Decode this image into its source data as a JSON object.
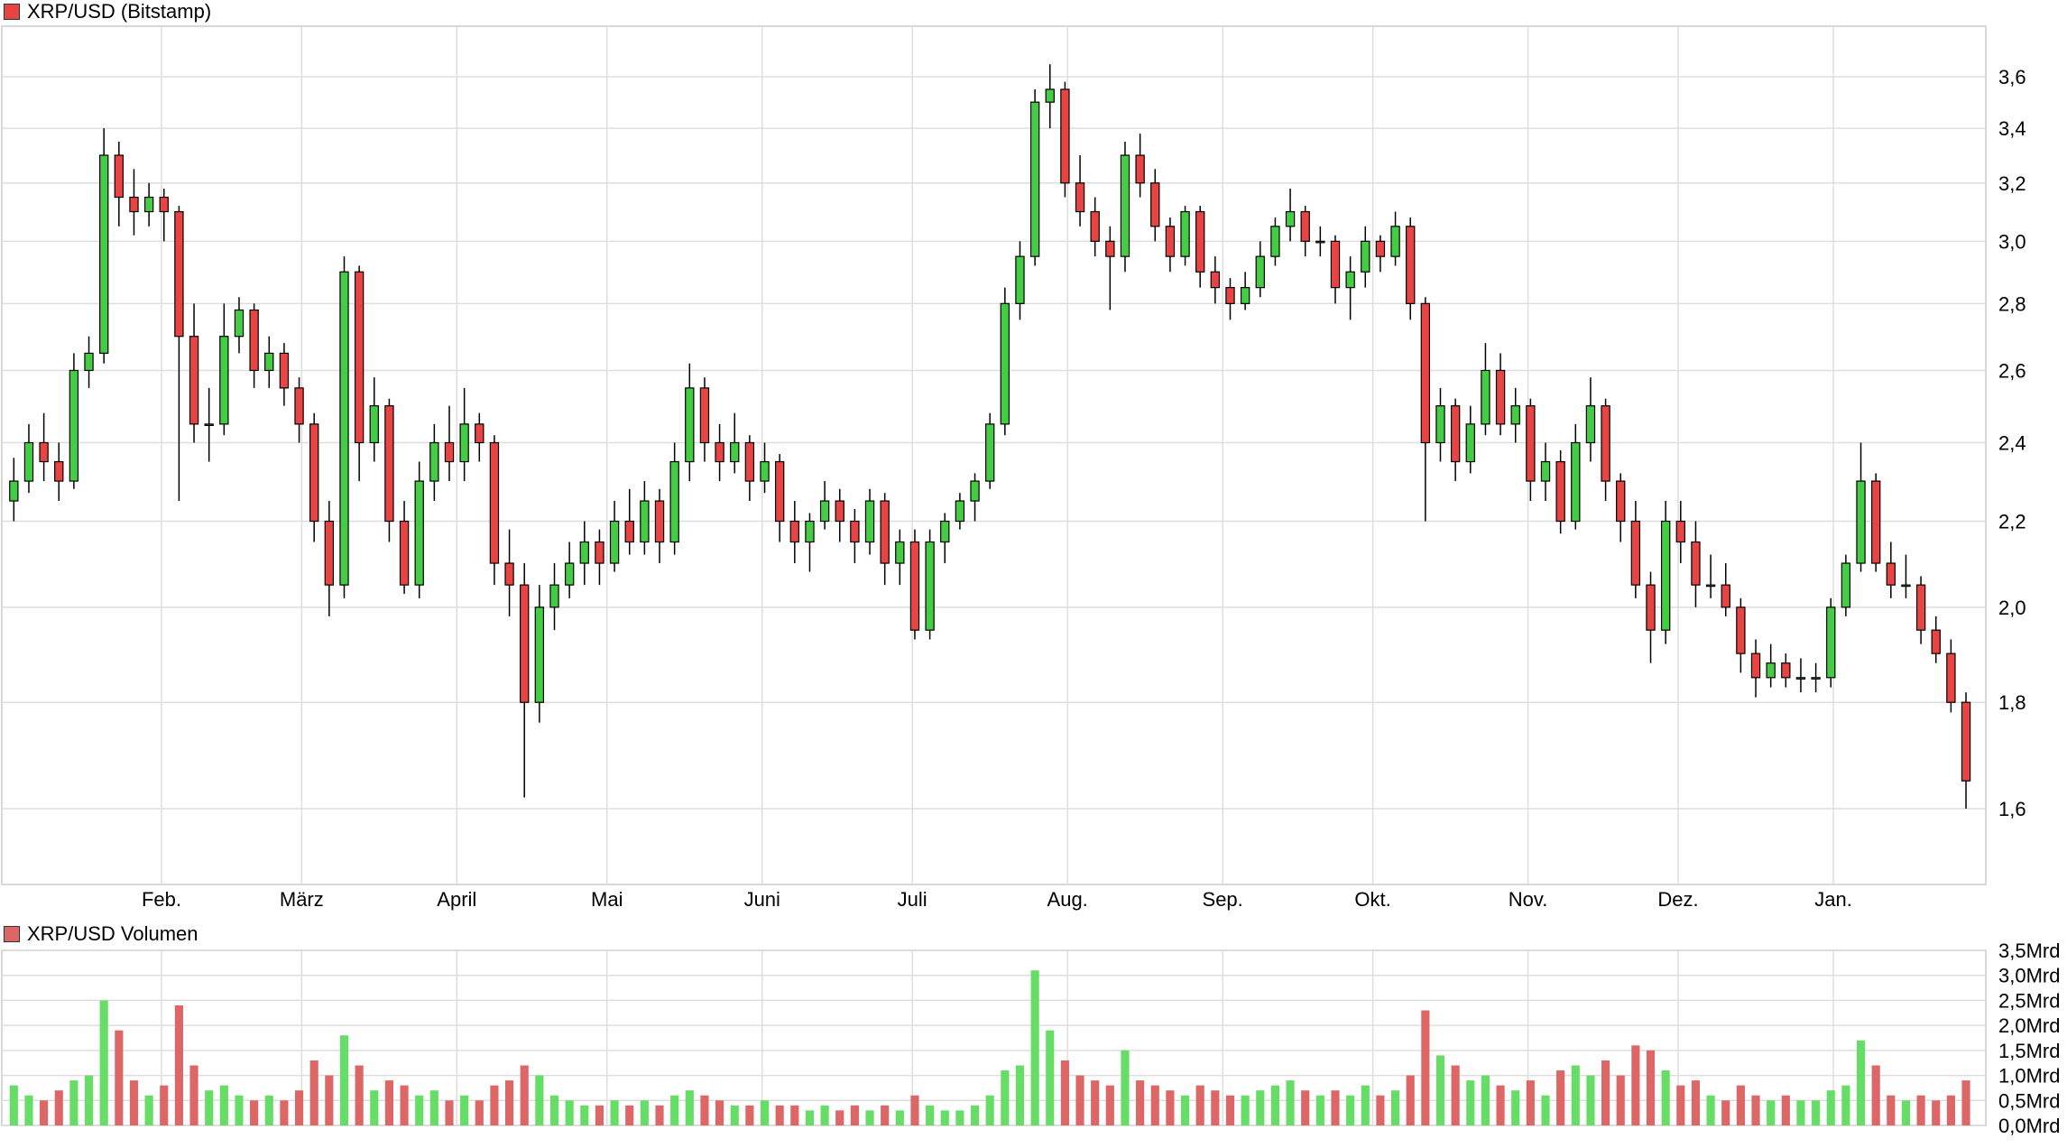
{
  "chart_data": [
    {
      "type": "candlestick",
      "title": "XRP/USD (Bitstamp)",
      "legend_color": "#e84444",
      "scale": "log",
      "ylim": [
        1.45,
        3.72
      ],
      "y_ticks": [
        "1,6",
        "1,8",
        "2,0",
        "2,2",
        "2,4",
        "2,6",
        "2,8",
        "3,0",
        "3,2",
        "3,4",
        "3,6"
      ],
      "y_tick_values": [
        1.6,
        1.8,
        2.0,
        2.2,
        2.4,
        2.6,
        2.8,
        3.0,
        3.2,
        3.4,
        3.6
      ],
      "x_ticks": [
        "Feb.",
        "März",
        "April",
        "Mai",
        "Juni",
        "Juli",
        "Aug.",
        "Sep.",
        "Okt.",
        "Nov.",
        "Dez.",
        "Jan."
      ],
      "x_tick_dates": [
        "2025-02-01",
        "2025-03-01",
        "2025-04-01",
        "2025-05-01",
        "2025-06-01",
        "2025-07-01",
        "2025-08-01",
        "2025-09-01",
        "2025-10-01",
        "2025-11-01",
        "2025-12-01",
        "2026-01-01"
      ],
      "start_date": "2025-01-01",
      "candle_step_days": 3,
      "grid": true,
      "up_color": "#44cc44",
      "down_color": "#e84444",
      "ohlc": [
        [
          2.25,
          2.36,
          2.2,
          2.3
        ],
        [
          2.3,
          2.45,
          2.27,
          2.4
        ],
        [
          2.4,
          2.48,
          2.3,
          2.35
        ],
        [
          2.35,
          2.4,
          2.25,
          2.3
        ],
        [
          2.3,
          2.65,
          2.28,
          2.6
        ],
        [
          2.6,
          2.7,
          2.55,
          2.65
        ],
        [
          2.65,
          3.4,
          2.62,
          3.3
        ],
        [
          3.3,
          3.35,
          3.05,
          3.15
        ],
        [
          3.15,
          3.25,
          3.02,
          3.1
        ],
        [
          3.1,
          3.2,
          3.05,
          3.15
        ],
        [
          3.15,
          3.18,
          3.0,
          3.1
        ],
        [
          3.1,
          3.12,
          2.25,
          2.7
        ],
        [
          2.7,
          2.8,
          2.4,
          2.45
        ],
        [
          2.45,
          2.55,
          2.35,
          2.45
        ],
        [
          2.45,
          2.8,
          2.42,
          2.7
        ],
        [
          2.7,
          2.82,
          2.65,
          2.78
        ],
        [
          2.78,
          2.8,
          2.55,
          2.6
        ],
        [
          2.6,
          2.7,
          2.55,
          2.65
        ],
        [
          2.65,
          2.68,
          2.5,
          2.55
        ],
        [
          2.55,
          2.58,
          2.4,
          2.45
        ],
        [
          2.45,
          2.48,
          2.15,
          2.2
        ],
        [
          2.2,
          2.25,
          1.98,
          2.05
        ],
        [
          2.05,
          2.95,
          2.02,
          2.9
        ],
        [
          2.9,
          2.92,
          2.3,
          2.4
        ],
        [
          2.4,
          2.58,
          2.35,
          2.5
        ],
        [
          2.5,
          2.52,
          2.15,
          2.2
        ],
        [
          2.2,
          2.25,
          2.03,
          2.05
        ],
        [
          2.05,
          2.35,
          2.02,
          2.3
        ],
        [
          2.3,
          2.45,
          2.25,
          2.4
        ],
        [
          2.4,
          2.5,
          2.3,
          2.35
        ],
        [
          2.35,
          2.55,
          2.3,
          2.45
        ],
        [
          2.45,
          2.48,
          2.35,
          2.4
        ],
        [
          2.4,
          2.42,
          2.05,
          2.1
        ],
        [
          2.1,
          2.18,
          1.98,
          2.05
        ],
        [
          2.05,
          2.1,
          1.62,
          1.8
        ],
        [
          1.8,
          2.05,
          1.76,
          2.0
        ],
        [
          2.0,
          2.1,
          1.95,
          2.05
        ],
        [
          2.05,
          2.15,
          2.02,
          2.1
        ],
        [
          2.1,
          2.2,
          2.05,
          2.15
        ],
        [
          2.15,
          2.18,
          2.05,
          2.1
        ],
        [
          2.1,
          2.25,
          2.08,
          2.2
        ],
        [
          2.2,
          2.28,
          2.12,
          2.15
        ],
        [
          2.15,
          2.3,
          2.12,
          2.25
        ],
        [
          2.25,
          2.28,
          2.1,
          2.15
        ],
        [
          2.15,
          2.4,
          2.12,
          2.35
        ],
        [
          2.35,
          2.62,
          2.3,
          2.55
        ],
        [
          2.55,
          2.58,
          2.35,
          2.4
        ],
        [
          2.4,
          2.45,
          2.3,
          2.35
        ],
        [
          2.35,
          2.48,
          2.32,
          2.4
        ],
        [
          2.4,
          2.42,
          2.25,
          2.3
        ],
        [
          2.3,
          2.4,
          2.27,
          2.35
        ],
        [
          2.35,
          2.37,
          2.15,
          2.2
        ],
        [
          2.2,
          2.25,
          2.1,
          2.15
        ],
        [
          2.15,
          2.22,
          2.08,
          2.2
        ],
        [
          2.2,
          2.3,
          2.18,
          2.25
        ],
        [
          2.25,
          2.28,
          2.15,
          2.2
        ],
        [
          2.2,
          2.23,
          2.1,
          2.15
        ],
        [
          2.15,
          2.28,
          2.12,
          2.25
        ],
        [
          2.25,
          2.27,
          2.05,
          2.1
        ],
        [
          2.1,
          2.18,
          2.05,
          2.15
        ],
        [
          2.15,
          2.18,
          1.93,
          1.95
        ],
        [
          1.95,
          2.18,
          1.93,
          2.15
        ],
        [
          2.15,
          2.22,
          2.1,
          2.2
        ],
        [
          2.2,
          2.27,
          2.18,
          2.25
        ],
        [
          2.25,
          2.32,
          2.2,
          2.3
        ],
        [
          2.3,
          2.48,
          2.28,
          2.45
        ],
        [
          2.45,
          2.85,
          2.42,
          2.8
        ],
        [
          2.8,
          3.0,
          2.75,
          2.95
        ],
        [
          2.95,
          3.55,
          2.92,
          3.5
        ],
        [
          3.5,
          3.65,
          3.4,
          3.55
        ],
        [
          3.55,
          3.58,
          3.15,
          3.2
        ],
        [
          3.2,
          3.3,
          3.05,
          3.1
        ],
        [
          3.1,
          3.15,
          2.95,
          3.0
        ],
        [
          3.0,
          3.05,
          2.78,
          2.95
        ],
        [
          2.95,
          3.35,
          2.9,
          3.3
        ],
        [
          3.3,
          3.38,
          3.15,
          3.2
        ],
        [
          3.2,
          3.25,
          3.0,
          3.05
        ],
        [
          3.05,
          3.08,
          2.9,
          2.95
        ],
        [
          2.95,
          3.12,
          2.92,
          3.1
        ],
        [
          3.1,
          3.12,
          2.85,
          2.9
        ],
        [
          2.9,
          2.95,
          2.8,
          2.85
        ],
        [
          2.85,
          2.88,
          2.75,
          2.8
        ],
        [
          2.8,
          2.9,
          2.78,
          2.85
        ],
        [
          2.85,
          3.0,
          2.82,
          2.95
        ],
        [
          2.95,
          3.08,
          2.92,
          3.05
        ],
        [
          3.05,
          3.18,
          3.0,
          3.1
        ],
        [
          3.1,
          3.12,
          2.95,
          3.0
        ],
        [
          3.0,
          3.05,
          2.95,
          3.0
        ],
        [
          3.0,
          3.02,
          2.8,
          2.85
        ],
        [
          2.85,
          2.95,
          2.75,
          2.9
        ],
        [
          2.9,
          3.05,
          2.85,
          3.0
        ],
        [
          3.0,
          3.02,
          2.9,
          2.95
        ],
        [
          2.95,
          3.1,
          2.92,
          3.05
        ],
        [
          3.05,
          3.08,
          2.75,
          2.8
        ],
        [
          2.8,
          2.82,
          2.2,
          2.4
        ],
        [
          2.4,
          2.55,
          2.35,
          2.5
        ],
        [
          2.5,
          2.52,
          2.3,
          2.35
        ],
        [
          2.35,
          2.5,
          2.32,
          2.45
        ],
        [
          2.45,
          2.68,
          2.42,
          2.6
        ],
        [
          2.6,
          2.65,
          2.42,
          2.45
        ],
        [
          2.45,
          2.55,
          2.4,
          2.5
        ],
        [
          2.5,
          2.52,
          2.25,
          2.3
        ],
        [
          2.3,
          2.4,
          2.25,
          2.35
        ],
        [
          2.35,
          2.38,
          2.17,
          2.2
        ],
        [
          2.2,
          2.45,
          2.18,
          2.4
        ],
        [
          2.4,
          2.58,
          2.35,
          2.5
        ],
        [
          2.5,
          2.52,
          2.25,
          2.3
        ],
        [
          2.3,
          2.32,
          2.15,
          2.2
        ],
        [
          2.2,
          2.25,
          2.02,
          2.05
        ],
        [
          2.05,
          2.08,
          1.88,
          1.95
        ],
        [
          1.95,
          2.25,
          1.92,
          2.2
        ],
        [
          2.2,
          2.25,
          2.1,
          2.15
        ],
        [
          2.15,
          2.2,
          2.0,
          2.05
        ],
        [
          2.05,
          2.12,
          2.02,
          2.05
        ],
        [
          2.05,
          2.1,
          1.98,
          2.0
        ],
        [
          2.0,
          2.02,
          1.86,
          1.9
        ],
        [
          1.9,
          1.93,
          1.81,
          1.85
        ],
        [
          1.85,
          1.92,
          1.83,
          1.88
        ],
        [
          1.88,
          1.9,
          1.83,
          1.85
        ],
        [
          1.85,
          1.89,
          1.82,
          1.85
        ],
        [
          1.85,
          1.88,
          1.82,
          1.85
        ],
        [
          1.85,
          2.02,
          1.83,
          2.0
        ],
        [
          2.0,
          2.12,
          1.98,
          2.1
        ],
        [
          2.1,
          2.4,
          2.08,
          2.3
        ],
        [
          2.3,
          2.32,
          2.08,
          2.1
        ],
        [
          2.1,
          2.15,
          2.02,
          2.05
        ],
        [
          2.05,
          2.12,
          2.02,
          2.05
        ],
        [
          2.05,
          2.07,
          1.92,
          1.95
        ],
        [
          1.95,
          1.98,
          1.88,
          1.9
        ],
        [
          1.9,
          1.93,
          1.78,
          1.8
        ],
        [
          1.8,
          1.82,
          1.6,
          1.65
        ]
      ]
    },
    {
      "type": "bar",
      "title": "XRP/USD Volumen",
      "legend_color": "#dd6666",
      "ylim": [
        0,
        3.5
      ],
      "y_ticks": [
        "0,0Mrd",
        "0,5Mrd",
        "1,0Mrd",
        "1,5Mrd",
        "2,0Mrd",
        "2,5Mrd",
        "3,0Mrd",
        "3,5Mrd"
      ],
      "y_tick_values": [
        0,
        0.5,
        1.0,
        1.5,
        2.0,
        2.5,
        3.0,
        3.5
      ],
      "unit": "Mrd",
      "up_color": "#66dd66",
      "down_color": "#dd6666",
      "values": [
        0.8,
        0.6,
        0.5,
        0.7,
        0.9,
        1.0,
        2.5,
        1.9,
        0.9,
        0.6,
        0.8,
        2.4,
        1.2,
        0.7,
        0.8,
        0.6,
        0.5,
        0.6,
        0.5,
        0.7,
        1.3,
        1.0,
        1.8,
        1.2,
        0.7,
        0.9,
        0.8,
        0.6,
        0.7,
        0.5,
        0.6,
        0.5,
        0.8,
        0.9,
        1.2,
        1.0,
        0.6,
        0.5,
        0.4,
        0.4,
        0.5,
        0.4,
        0.5,
        0.4,
        0.6,
        0.7,
        0.6,
        0.5,
        0.4,
        0.4,
        0.5,
        0.4,
        0.4,
        0.3,
        0.4,
        0.3,
        0.4,
        0.3,
        0.4,
        0.3,
        0.6,
        0.4,
        0.3,
        0.3,
        0.4,
        0.6,
        1.1,
        1.2,
        3.1,
        1.9,
        1.3,
        1.0,
        0.9,
        0.8,
        1.5,
        0.9,
        0.8,
        0.7,
        0.6,
        0.8,
        0.7,
        0.6,
        0.6,
        0.7,
        0.8,
        0.9,
        0.7,
        0.6,
        0.7,
        0.6,
        0.8,
        0.6,
        0.7,
        1.0,
        2.3,
        1.4,
        1.2,
        0.9,
        1.0,
        0.8,
        0.7,
        0.9,
        0.6,
        1.1,
        1.2,
        1.0,
        1.3,
        1.0,
        1.6,
        1.5,
        1.1,
        0.8,
        0.9,
        0.6,
        0.5,
        0.8,
        0.6,
        0.5,
        0.6,
        0.5,
        0.5,
        0.7,
        0.8,
        1.7,
        1.2,
        0.6,
        0.5,
        0.6,
        0.5,
        0.6,
        0.9
      ]
    }
  ]
}
